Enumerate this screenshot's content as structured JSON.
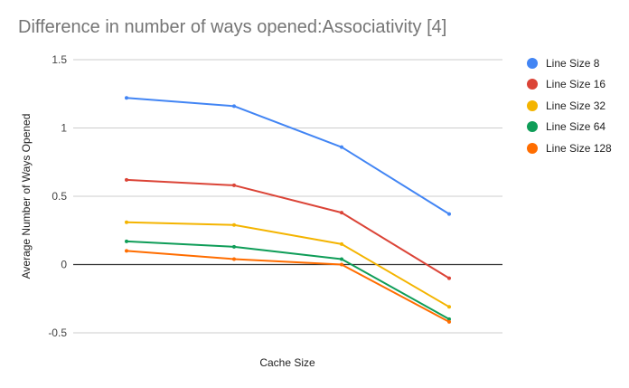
{
  "chart_data": {
    "type": "line",
    "title": "Difference in number of ways opened:Associativity [4]",
    "xlabel": "Cache Size",
    "ylabel": "Average Number of Ways Opened",
    "categories": [
      "",
      "",
      "",
      ""
    ],
    "ylim": [
      -0.5,
      1.5
    ],
    "yticks": [
      "1.5",
      "1",
      "0.5",
      "0",
      "-0.5"
    ],
    "ytick_values": [
      1.5,
      1,
      0.5,
      0,
      -0.5
    ],
    "grid": true,
    "legend_position": "right",
    "series": [
      {
        "name": "Line Size 8",
        "color": "#4285f4",
        "values": [
          1.22,
          1.16,
          0.86,
          0.37
        ]
      },
      {
        "name": "Line Size 16",
        "color": "#db4437",
        "values": [
          0.62,
          0.58,
          0.38,
          -0.1
        ]
      },
      {
        "name": "Line Size 32",
        "color": "#f4b400",
        "values": [
          0.31,
          0.29,
          0.15,
          -0.31
        ]
      },
      {
        "name": "Line Size 64",
        "color": "#0f9d58",
        "values": [
          0.17,
          0.13,
          0.04,
          -0.4
        ]
      },
      {
        "name": "Line Size 128",
        "color": "#ff6d00",
        "values": [
          0.1,
          0.04,
          0.0,
          -0.42
        ]
      }
    ]
  }
}
